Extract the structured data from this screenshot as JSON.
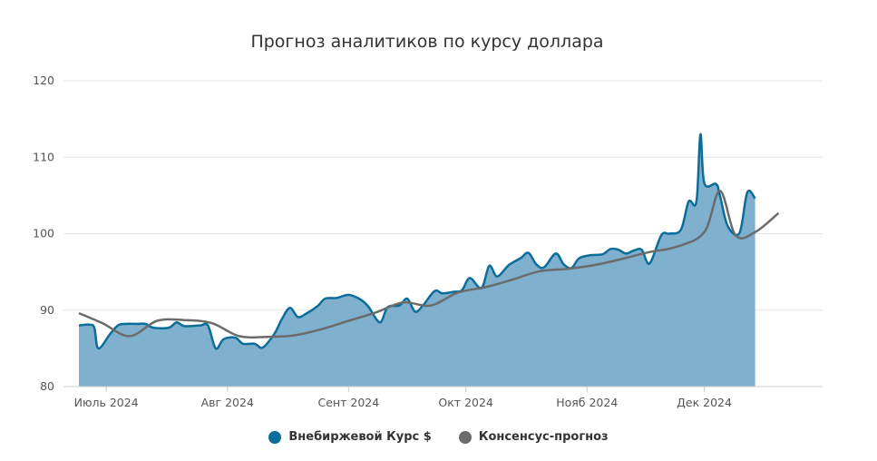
{
  "chart_data": {
    "type": "area",
    "title": "Прогноз аналитиков по курсу доллара",
    "xlabel": "",
    "ylabel": "",
    "ylim": [
      80,
      120
    ],
    "yticks": [
      80,
      90,
      100,
      110,
      120
    ],
    "xlim": [
      "2024-06-24",
      "2024-12-25"
    ],
    "xticks": [
      {
        "date": "2024-07-01",
        "label": "Июль 2024"
      },
      {
        "date": "2024-08-01",
        "label": "Авг 2024"
      },
      {
        "date": "2024-09-01",
        "label": "Сент 2024"
      },
      {
        "date": "2024-10-01",
        "label": "Окт 2024"
      },
      {
        "date": "2024-11-01",
        "label": "Нояб 2024"
      },
      {
        "date": "2024-12-01",
        "label": "Дек 2024"
      }
    ],
    "grid": true,
    "legend": "bottom-center",
    "series": [
      {
        "name": "Внебиржевой Курс $",
        "color": "#0b6d99",
        "fill": "#7fb1cf",
        "points": [
          [
            "2024-06-24",
            88.0
          ],
          [
            "2024-06-27",
            88.1
          ],
          [
            "2024-06-28",
            87.6
          ],
          [
            "2024-06-29",
            85.0
          ],
          [
            "2024-07-02",
            86.9
          ],
          [
            "2024-07-04",
            88.0
          ],
          [
            "2024-07-06",
            88.2
          ],
          [
            "2024-07-09",
            88.2
          ],
          [
            "2024-07-11",
            88.2
          ],
          [
            "2024-07-13",
            87.7
          ],
          [
            "2024-07-17",
            87.7
          ],
          [
            "2024-07-19",
            88.4
          ],
          [
            "2024-07-21",
            87.9
          ],
          [
            "2024-07-25",
            88.0
          ],
          [
            "2024-07-27",
            88.0
          ],
          [
            "2024-07-29",
            85.0
          ],
          [
            "2024-07-31",
            86.2
          ],
          [
            "2024-08-03",
            86.4
          ],
          [
            "2024-08-05",
            85.6
          ],
          [
            "2024-08-08",
            85.6
          ],
          [
            "2024-08-10",
            85.1
          ],
          [
            "2024-08-13",
            86.9
          ],
          [
            "2024-08-15",
            88.9
          ],
          [
            "2024-08-17",
            90.3
          ],
          [
            "2024-08-19",
            89.1
          ],
          [
            "2024-08-21",
            89.5
          ],
          [
            "2024-08-24",
            90.5
          ],
          [
            "2024-08-26",
            91.5
          ],
          [
            "2024-08-29",
            91.6
          ],
          [
            "2024-09-01",
            92.0
          ],
          [
            "2024-09-04",
            91.4
          ],
          [
            "2024-09-06",
            90.5
          ],
          [
            "2024-09-09",
            88.4
          ],
          [
            "2024-09-11",
            90.4
          ],
          [
            "2024-09-14",
            90.6
          ],
          [
            "2024-09-16",
            91.5
          ],
          [
            "2024-09-18",
            89.8
          ],
          [
            "2024-09-20",
            90.6
          ],
          [
            "2024-09-23",
            92.5
          ],
          [
            "2024-09-25",
            92.2
          ],
          [
            "2024-09-28",
            92.4
          ],
          [
            "2024-09-30",
            92.6
          ],
          [
            "2024-10-02",
            94.2
          ],
          [
            "2024-10-05",
            92.9
          ],
          [
            "2024-10-07",
            95.8
          ],
          [
            "2024-10-09",
            94.4
          ],
          [
            "2024-10-12",
            95.9
          ],
          [
            "2024-10-15",
            96.8
          ],
          [
            "2024-10-17",
            97.5
          ],
          [
            "2024-10-19",
            96.0
          ],
          [
            "2024-10-21",
            95.6
          ],
          [
            "2024-10-24",
            97.4
          ],
          [
            "2024-10-26",
            96.0
          ],
          [
            "2024-10-28",
            95.5
          ],
          [
            "2024-10-30",
            96.8
          ],
          [
            "2024-11-02",
            97.2
          ],
          [
            "2024-11-05",
            97.3
          ],
          [
            "2024-11-07",
            98.0
          ],
          [
            "2024-11-09",
            97.9
          ],
          [
            "2024-11-11",
            97.4
          ],
          [
            "2024-11-13",
            97.8
          ],
          [
            "2024-11-15",
            97.9
          ],
          [
            "2024-11-17",
            96.1
          ],
          [
            "2024-11-20",
            99.8
          ],
          [
            "2024-11-22",
            100.0
          ],
          [
            "2024-11-25",
            100.5
          ],
          [
            "2024-11-27",
            104.2
          ],
          [
            "2024-11-29",
            104.2
          ],
          [
            "2024-11-30",
            113.0
          ],
          [
            "2024-12-01",
            106.6
          ],
          [
            "2024-12-04",
            106.5
          ],
          [
            "2024-12-05",
            105.0
          ],
          [
            "2024-12-07",
            101.0
          ],
          [
            "2024-12-10",
            100.1
          ],
          [
            "2024-12-12",
            105.4
          ],
          [
            "2024-12-14",
            104.6
          ]
        ]
      },
      {
        "name": "Консенсус-прогноз",
        "color": "#6b6b6b",
        "points": [
          [
            "2024-06-24",
            89.6
          ],
          [
            "2024-06-30",
            88.3
          ],
          [
            "2024-07-07",
            86.6
          ],
          [
            "2024-07-14",
            88.6
          ],
          [
            "2024-07-21",
            88.7
          ],
          [
            "2024-07-28",
            88.3
          ],
          [
            "2024-08-04",
            86.6
          ],
          [
            "2024-08-11",
            86.5
          ],
          [
            "2024-08-18",
            86.7
          ],
          [
            "2024-08-25",
            87.5
          ],
          [
            "2024-09-01",
            88.6
          ],
          [
            "2024-09-08",
            89.7
          ],
          [
            "2024-09-15",
            91.0
          ],
          [
            "2024-09-22",
            90.6
          ],
          [
            "2024-09-29",
            92.3
          ],
          [
            "2024-10-06",
            93.0
          ],
          [
            "2024-10-13",
            94.0
          ],
          [
            "2024-10-20",
            95.1
          ],
          [
            "2024-10-27",
            95.4
          ],
          [
            "2024-11-03",
            95.9
          ],
          [
            "2024-11-10",
            96.7
          ],
          [
            "2024-11-17",
            97.6
          ],
          [
            "2024-11-24",
            98.3
          ],
          [
            "2024-12-01",
            100.2
          ],
          [
            "2024-12-05",
            105.6
          ],
          [
            "2024-12-09",
            99.8
          ],
          [
            "2024-12-14",
            100.2
          ],
          [
            "2024-12-20",
            102.7
          ]
        ]
      }
    ]
  }
}
